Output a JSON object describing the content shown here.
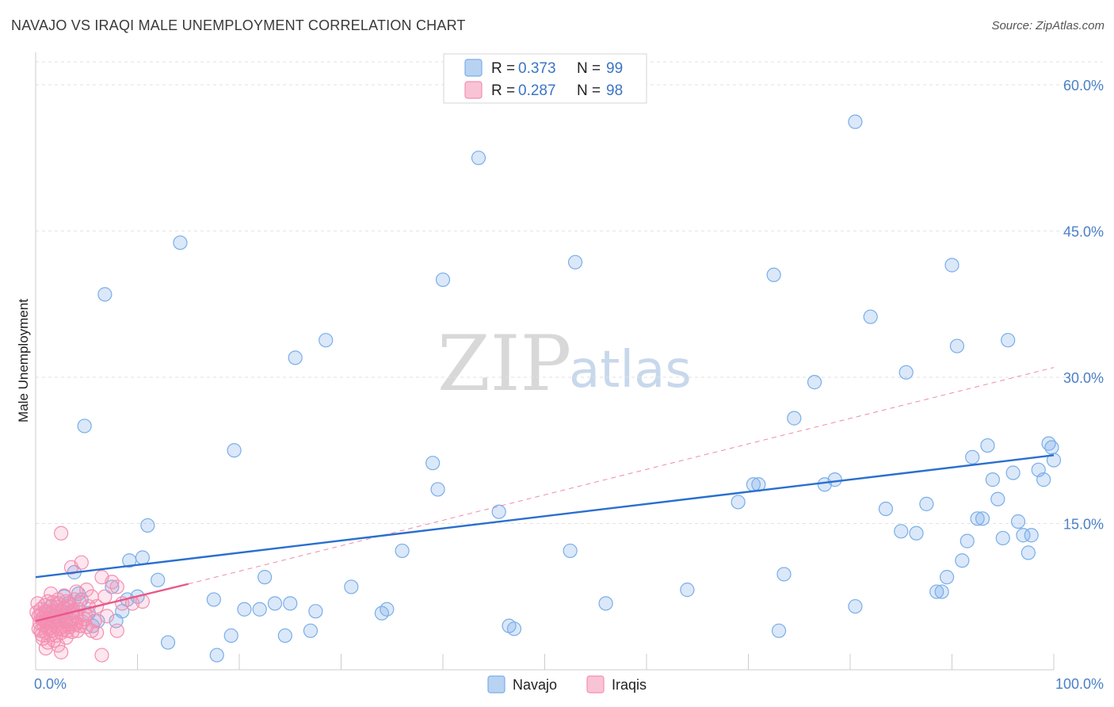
{
  "title": "NAVAJO VS IRAQI MALE UNEMPLOYMENT CORRELATION CHART",
  "source": "Source: ZipAtlas.com",
  "watermark": {
    "zip": "ZIP",
    "atlas": "atlas"
  },
  "chart_data": {
    "type": "scatter",
    "title": "NAVAJO VS IRAQI MALE UNEMPLOYMENT CORRELATION CHART",
    "xlabel": "",
    "ylabel": "Male Unemployment",
    "xlim": [
      0,
      100
    ],
    "ylim": [
      0,
      63
    ],
    "x_tick_labels": [
      {
        "value": 0,
        "label": "0.0%"
      },
      {
        "value": 100,
        "label": "100.0%"
      }
    ],
    "y_ticks": [
      {
        "value": 15,
        "label": "15.0%"
      },
      {
        "value": 30,
        "label": "30.0%"
      },
      {
        "value": 45,
        "label": "45.0%"
      },
      {
        "value": 60,
        "label": "60.0%"
      }
    ],
    "grid": true,
    "legend": {
      "placement": "top-center",
      "entries": [
        {
          "series": "Navajo",
          "r_label": "R = ",
          "r_value": "0.373",
          "n_label": "N = ",
          "n_value": "99"
        },
        {
          "series": "Iraqis",
          "r_label": "R = ",
          "r_value": "0.287",
          "n_label": "N = ",
          "n_value": "98"
        }
      ]
    },
    "bottom_legend": [
      "Navajo",
      "Iraqis"
    ],
    "colors": {
      "navajo": "#7aaee8",
      "navajo_line": "#2a6fcf",
      "iraqis": "#f48fb1",
      "iraqis_line": "#e8588a"
    },
    "series": [
      {
        "name": "Navajo",
        "trend": {
          "x": [
            0,
            100
          ],
          "y": [
            9.5,
            22.0
          ],
          "style": "solid"
        },
        "points": [
          [
            6.8,
            38.5
          ],
          [
            14.2,
            43.8
          ],
          [
            4.8,
            25.0
          ],
          [
            19.5,
            22.5
          ],
          [
            11.0,
            14.8
          ],
          [
            10.5,
            11.5
          ],
          [
            9.2,
            11.2
          ],
          [
            7.5,
            8.5
          ],
          [
            3.8,
            10.0
          ],
          [
            3.6,
            6.0
          ],
          [
            4.2,
            7.8
          ],
          [
            5.6,
            4.5
          ],
          [
            6.1,
            5.0
          ],
          [
            7.9,
            5.0
          ],
          [
            10.0,
            7.5
          ],
          [
            12.0,
            9.2
          ],
          [
            13.0,
            2.8
          ],
          [
            17.5,
            7.2
          ],
          [
            19.2,
            3.5
          ],
          [
            20.5,
            6.2
          ],
          [
            22.0,
            6.2
          ],
          [
            22.5,
            9.5
          ],
          [
            23.5,
            6.8
          ],
          [
            24.5,
            3.5
          ],
          [
            25.0,
            6.8
          ],
          [
            25.5,
            32.0
          ],
          [
            27.0,
            4.0
          ],
          [
            27.5,
            6.0
          ],
          [
            28.5,
            33.8
          ],
          [
            31.0,
            8.5
          ],
          [
            34.0,
            5.8
          ],
          [
            34.5,
            6.2
          ],
          [
            36.0,
            12.2
          ],
          [
            39.0,
            21.2
          ],
          [
            39.5,
            18.5
          ],
          [
            40.0,
            40.0
          ],
          [
            43.5,
            52.5
          ],
          [
            45.5,
            16.2
          ],
          [
            46.5,
            4.5
          ],
          [
            47.0,
            4.2
          ],
          [
            52.5,
            12.2
          ],
          [
            53.0,
            41.8
          ],
          [
            56.0,
            6.8
          ],
          [
            64.0,
            8.2
          ],
          [
            69.0,
            17.2
          ],
          [
            70.5,
            19.0
          ],
          [
            71.0,
            19.0
          ],
          [
            72.5,
            40.5
          ],
          [
            73.0,
            4.0
          ],
          [
            73.5,
            9.8
          ],
          [
            74.5,
            25.8
          ],
          [
            76.5,
            29.5
          ],
          [
            77.5,
            19.0
          ],
          [
            78.5,
            19.5
          ],
          [
            80.5,
            56.2
          ],
          [
            80.5,
            6.5
          ],
          [
            82.0,
            36.2
          ],
          [
            83.5,
            16.5
          ],
          [
            85.0,
            14.2
          ],
          [
            85.5,
            30.5
          ],
          [
            86.5,
            14.0
          ],
          [
            87.5,
            17.0
          ],
          [
            88.5,
            8.0
          ],
          [
            89.0,
            8.0
          ],
          [
            89.5,
            9.5
          ],
          [
            90.0,
            41.5
          ],
          [
            90.5,
            33.2
          ],
          [
            91.0,
            11.2
          ],
          [
            91.5,
            13.2
          ],
          [
            92.0,
            21.8
          ],
          [
            92.5,
            15.5
          ],
          [
            93.0,
            15.5
          ],
          [
            93.5,
            23.0
          ],
          [
            94.0,
            19.5
          ],
          [
            94.5,
            17.5
          ],
          [
            95.0,
            13.5
          ],
          [
            95.5,
            33.8
          ],
          [
            96.0,
            20.2
          ],
          [
            96.5,
            15.2
          ],
          [
            97.0,
            13.8
          ],
          [
            97.5,
            12.0
          ],
          [
            97.8,
            13.8
          ],
          [
            98.5,
            20.5
          ],
          [
            99.0,
            19.5
          ],
          [
            99.5,
            23.2
          ],
          [
            99.8,
            22.8
          ],
          [
            100.0,
            21.5
          ],
          [
            1.5,
            6.5
          ],
          [
            2.5,
            6.0
          ],
          [
            2.0,
            5.5
          ],
          [
            3.0,
            5.0
          ],
          [
            1.0,
            6.0
          ],
          [
            4.5,
            7.2
          ],
          [
            2.8,
            7.5
          ],
          [
            9.0,
            7.2
          ],
          [
            8.5,
            6.0
          ],
          [
            3.2,
            6.8
          ],
          [
            5.2,
            5.8
          ],
          [
            17.8,
            1.5
          ]
        ]
      },
      {
        "name": "Iraqis",
        "trend": {
          "x": [
            0,
            15
          ],
          "y": [
            5.0,
            8.8
          ],
          "style": "solid",
          "extension": {
            "x": [
              15,
              100
            ],
            "y": [
              8.8,
              31.0
            ],
            "style": "dashed"
          }
        },
        "points": [
          [
            2.5,
            14.0
          ],
          [
            4.5,
            11.0
          ],
          [
            3.5,
            10.5
          ],
          [
            6.5,
            9.5
          ],
          [
            7.5,
            9.0
          ],
          [
            8.0,
            8.5
          ],
          [
            5.0,
            8.2
          ],
          [
            4.0,
            8.0
          ],
          [
            1.5,
            7.8
          ],
          [
            2.8,
            7.6
          ],
          [
            3.8,
            7.2
          ],
          [
            5.5,
            7.5
          ],
          [
            6.8,
            7.5
          ],
          [
            9.5,
            6.8
          ],
          [
            1.2,
            7.0
          ],
          [
            2.2,
            6.8
          ],
          [
            3.2,
            6.5
          ],
          [
            4.2,
            6.2
          ],
          [
            5.2,
            6.5
          ],
          [
            0.5,
            6.2
          ],
          [
            1.0,
            6.0
          ],
          [
            1.8,
            6.0
          ],
          [
            2.0,
            5.8
          ],
          [
            2.6,
            5.6
          ],
          [
            3.0,
            5.5
          ],
          [
            3.5,
            5.8
          ],
          [
            4.0,
            5.5
          ],
          [
            4.8,
            5.2
          ],
          [
            0.3,
            5.5
          ],
          [
            0.6,
            5.2
          ],
          [
            0.9,
            5.0
          ],
          [
            1.3,
            5.3
          ],
          [
            1.6,
            5.1
          ],
          [
            2.1,
            5.0
          ],
          [
            2.4,
            4.8
          ],
          [
            2.9,
            4.9
          ],
          [
            3.4,
            4.7
          ],
          [
            3.9,
            4.6
          ],
          [
            4.4,
            4.5
          ],
          [
            5.0,
            4.4
          ],
          [
            0.4,
            4.8
          ],
          [
            0.8,
            4.6
          ],
          [
            1.1,
            4.4
          ],
          [
            1.4,
            4.3
          ],
          [
            1.9,
            4.5
          ],
          [
            2.3,
            4.2
          ],
          [
            2.7,
            4.1
          ],
          [
            3.1,
            4.0
          ],
          [
            3.6,
            3.9
          ],
          [
            4.1,
            4.0
          ],
          [
            5.5,
            4.0
          ],
          [
            0.5,
            4.0
          ],
          [
            1.0,
            3.8
          ],
          [
            1.5,
            3.6
          ],
          [
            2.0,
            3.5
          ],
          [
            2.5,
            3.8
          ],
          [
            3.0,
            3.3
          ],
          [
            0.7,
            3.2
          ],
          [
            1.2,
            2.8
          ],
          [
            1.8,
            3.0
          ],
          [
            2.2,
            2.5
          ],
          [
            1.0,
            2.2
          ],
          [
            2.5,
            1.8
          ],
          [
            6.5,
            1.5
          ],
          [
            6.0,
            3.8
          ],
          [
            8.0,
            4.0
          ],
          [
            3.3,
            4.4
          ],
          [
            4.6,
            4.9
          ],
          [
            0.2,
            6.8
          ],
          [
            0.9,
            6.6
          ],
          [
            1.7,
            6.9
          ],
          [
            2.7,
            6.3
          ],
          [
            3.7,
            6.1
          ],
          [
            6.0,
            6.5
          ],
          [
            7.0,
            5.5
          ],
          [
            8.5,
            6.8
          ],
          [
            10.5,
            7.0
          ],
          [
            1.4,
            5.7
          ],
          [
            0.3,
            4.2
          ],
          [
            0.6,
            3.6
          ],
          [
            2.9,
            5.9
          ],
          [
            4.3,
            6.9
          ],
          [
            5.8,
            5.0
          ],
          [
            3.0,
            7.0
          ],
          [
            0.1,
            5.9
          ],
          [
            1.6,
            4.0
          ],
          [
            2.3,
            5.4
          ],
          [
            3.6,
            5.0
          ],
          [
            4.9,
            5.6
          ],
          [
            0.5,
            5.7
          ],
          [
            1.2,
            4.9
          ],
          [
            2.0,
            6.4
          ],
          [
            2.6,
            4.4
          ],
          [
            3.4,
            6.6
          ],
          [
            4.0,
            4.8
          ],
          [
            1.8,
            5.5
          ],
          [
            0.8,
            5.4
          ],
          [
            2.2,
            7.2
          ]
        ]
      }
    ]
  }
}
